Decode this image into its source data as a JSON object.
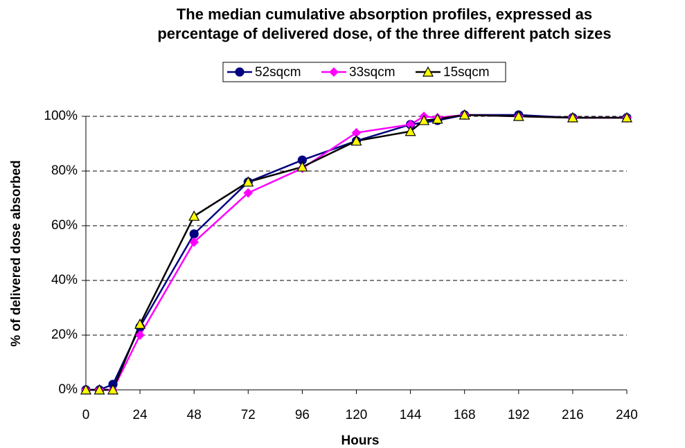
{
  "chart_data": {
    "type": "line",
    "title": [
      "The median cumulative absorption profiles, expressed as",
      "percentage of delivered dose, of the three different patch sizes"
    ],
    "x_label": "Hours",
    "y_label": "% of delivered dose absorbed",
    "xlim": [
      0,
      240
    ],
    "xticks": [
      0,
      24,
      48,
      72,
      96,
      120,
      144,
      168,
      192,
      216,
      240
    ],
    "ylim": [
      0,
      100
    ],
    "yticks": [
      {
        "value": 0,
        "label": "0%"
      },
      {
        "value": 20,
        "label": "20%"
      },
      {
        "value": 40,
        "label": "40%"
      },
      {
        "value": 60,
        "label": "60%"
      },
      {
        "value": 80,
        "label": "80%"
      },
      {
        "value": 100,
        "label": "100%"
      }
    ],
    "grid": true,
    "legend": "top",
    "series": [
      {
        "name": "52sqcm",
        "color": "#000080",
        "marker": "circle",
        "marker_fill": "#000080",
        "x": [
          0,
          6,
          12,
          24,
          48,
          72,
          96,
          120,
          144,
          156,
          168,
          192,
          216,
          240
        ],
        "values": [
          0,
          0,
          2,
          23,
          57,
          76,
          84,
          91,
          97,
          98.5,
          100.5,
          100.5,
          99.5,
          99.5
        ]
      },
      {
        "name": "33sqcm",
        "color": "#ff00ff",
        "marker": "diamond",
        "marker_fill": "#ff00ff",
        "x": [
          0,
          6,
          12,
          24,
          48,
          72,
          96,
          120,
          144,
          150,
          156,
          168,
          192,
          216,
          240
        ],
        "values": [
          0,
          0,
          0,
          20,
          54,
          72,
          81,
          94,
          97,
          100,
          99.5,
          100.5,
          100,
          99.5,
          99.5
        ]
      },
      {
        "name": "15sqcm",
        "color": "#000000",
        "marker": "triangle",
        "marker_fill": "#ffff00",
        "x": [
          0,
          6,
          12,
          24,
          48,
          72,
          96,
          120,
          144,
          150,
          156,
          168,
          192,
          216,
          240
        ],
        "values": [
          0,
          0,
          0,
          24,
          63.5,
          76,
          81.5,
          91,
          94.5,
          98.5,
          99,
          100.5,
          100,
          99.5,
          99.5
        ]
      }
    ]
  }
}
